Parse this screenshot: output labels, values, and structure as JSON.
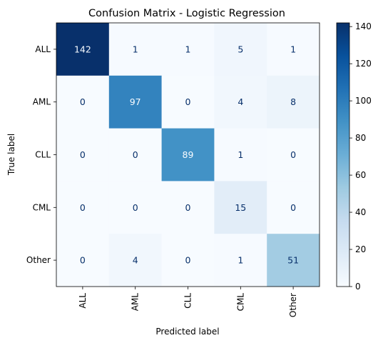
{
  "chart_data": {
    "type": "heatmap",
    "title": "Confusion Matrix - Logistic Regression",
    "xlabel": "Predicted label",
    "ylabel": "True label",
    "x_categories": [
      "ALL",
      "AML",
      "CLL",
      "CML",
      "Other"
    ],
    "y_categories": [
      "ALL",
      "AML",
      "CLL",
      "CML",
      "Other"
    ],
    "values": [
      [
        142,
        1,
        1,
        5,
        1
      ],
      [
        0,
        97,
        0,
        4,
        8
      ],
      [
        0,
        0,
        89,
        1,
        0
      ],
      [
        0,
        0,
        0,
        15,
        0
      ],
      [
        0,
        4,
        0,
        1,
        51
      ]
    ],
    "colormap": "Blues",
    "colorbar": {
      "range": [
        0,
        142
      ],
      "ticks": [
        "0",
        "20",
        "40",
        "60",
        "80",
        "100",
        "120",
        "140"
      ]
    },
    "colors": {
      "low": "#f7fbff",
      "high": "#08306b",
      "text_dark": "#08306b",
      "text_light": "#f7fbff"
    }
  }
}
